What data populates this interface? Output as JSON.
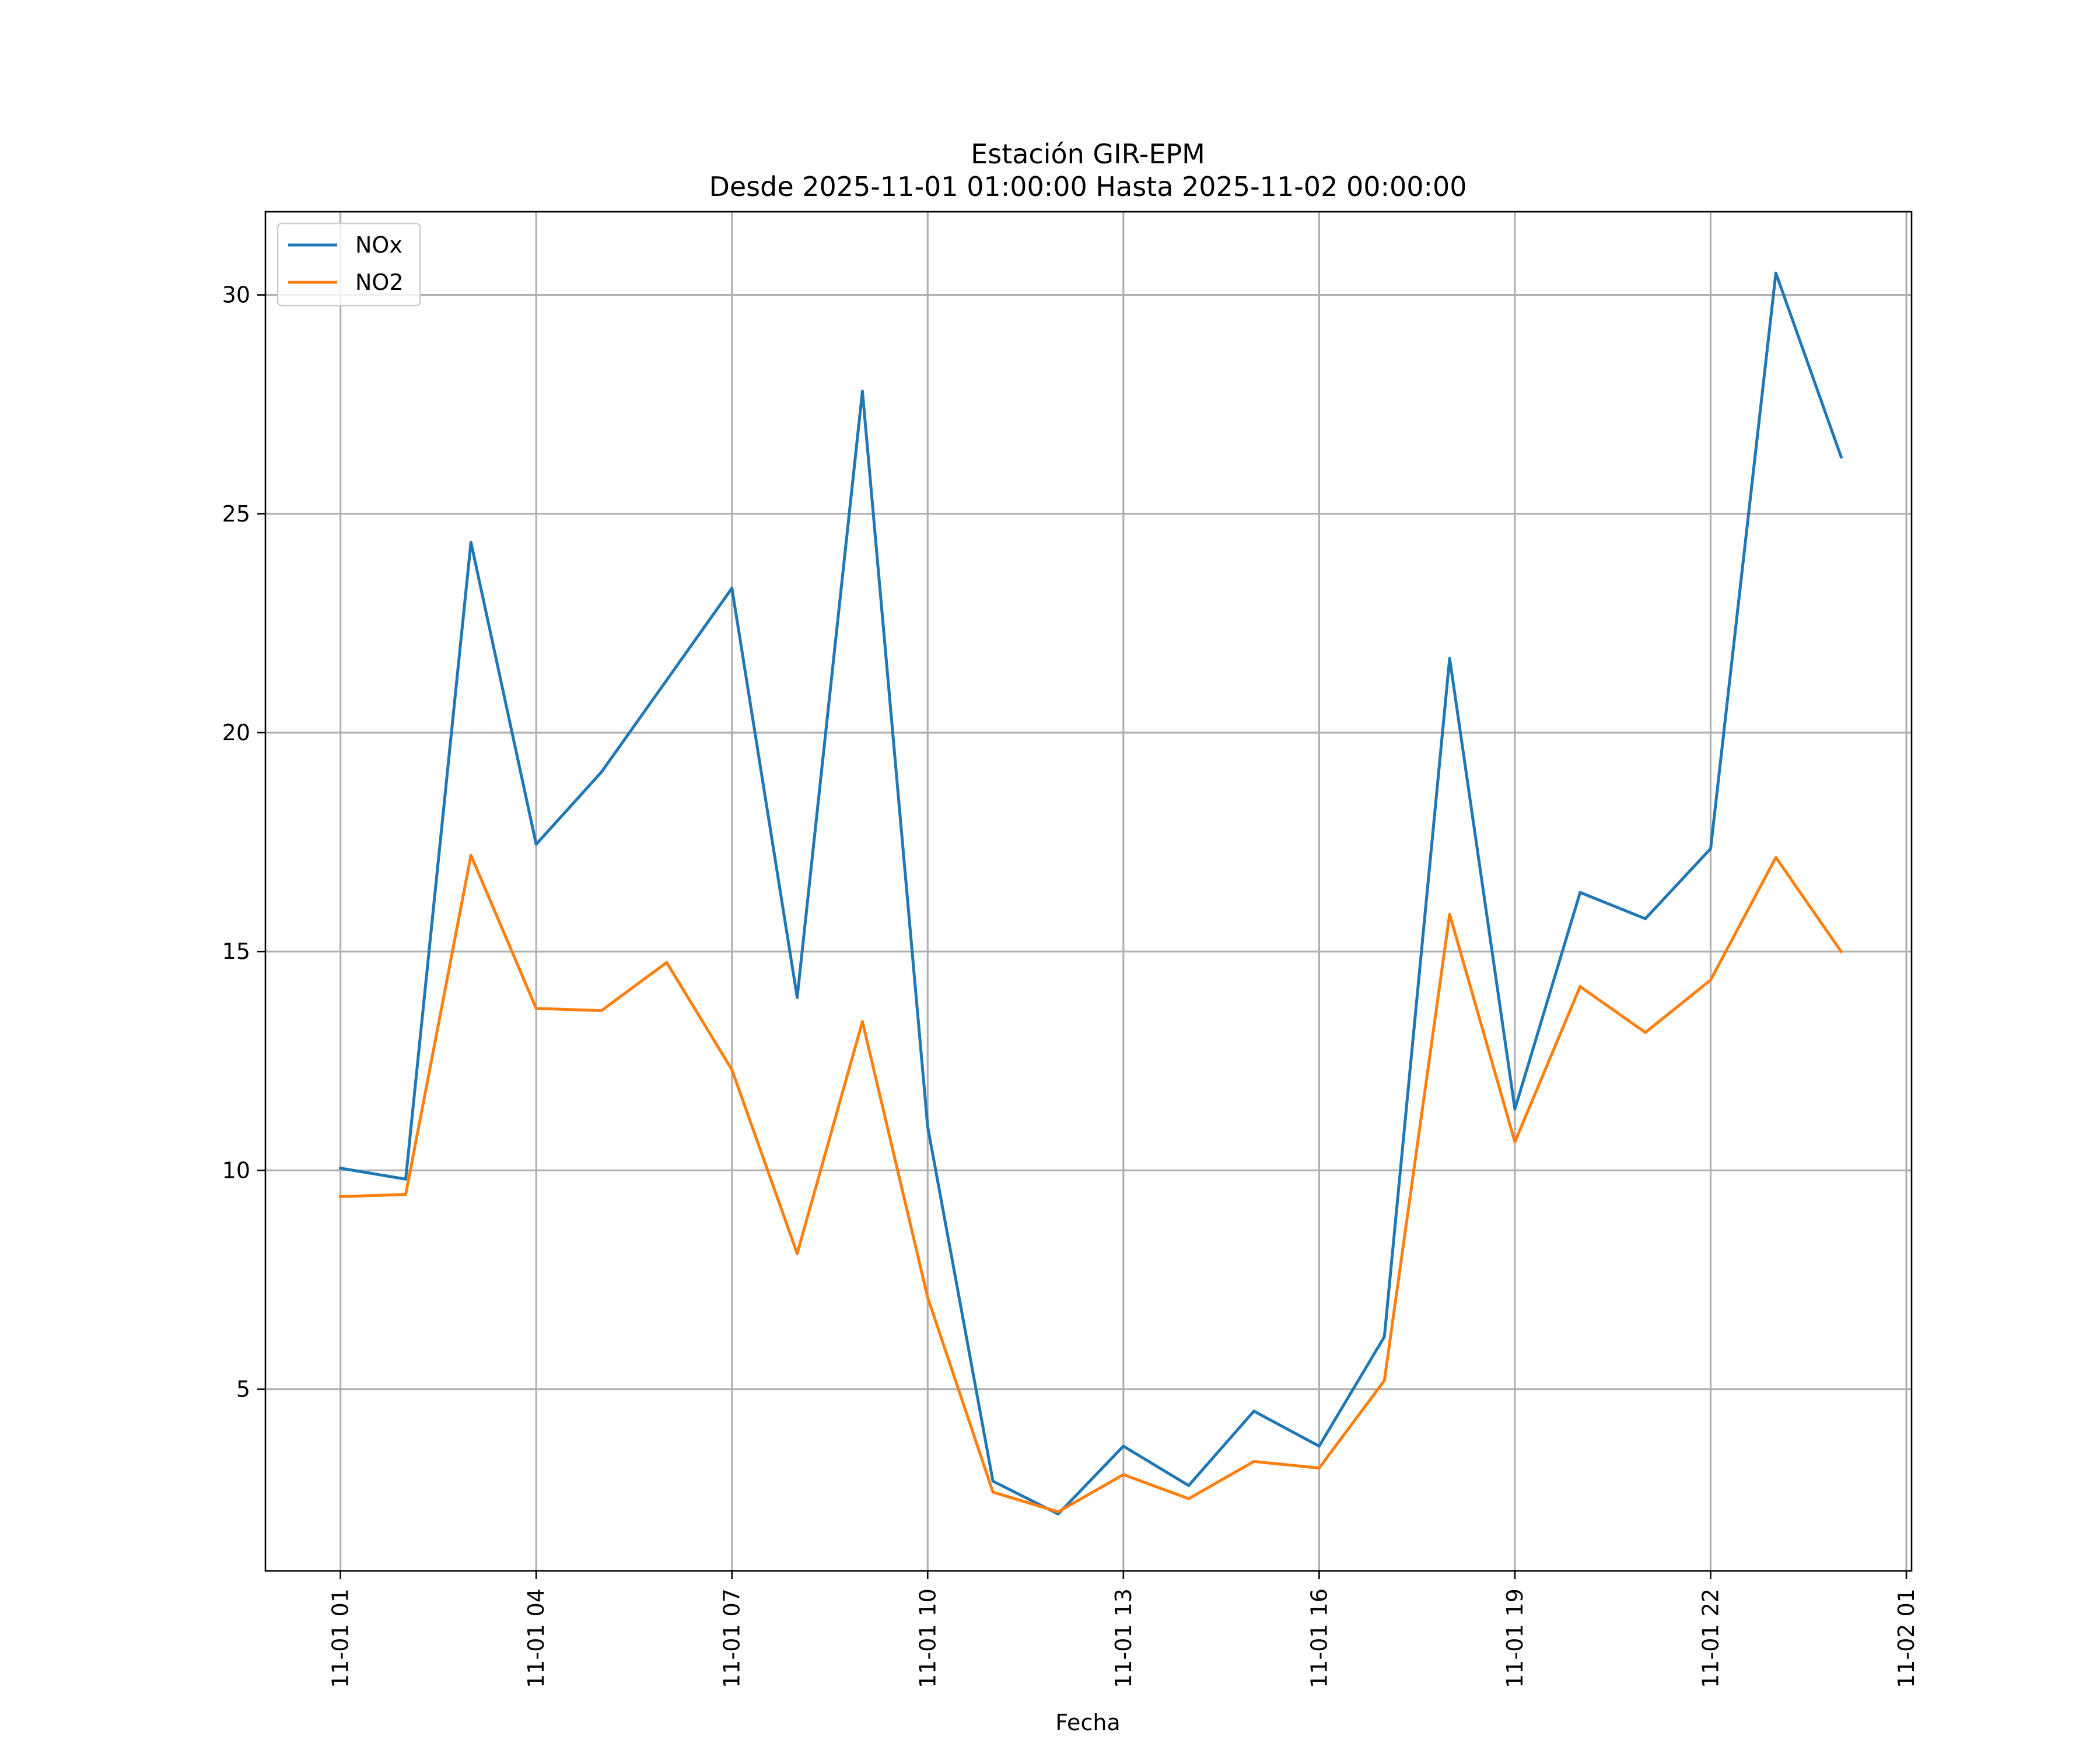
{
  "chart_data": {
    "type": "line",
    "title": [
      "Estación GIR-EPM",
      "Desde 2025-11-01 01:00:00 Hasta 2025-11-02 00:00:00"
    ],
    "xlabel": "Fecha",
    "ylabel": "",
    "x": [
      1,
      2,
      3,
      4,
      5,
      6,
      7,
      8,
      9,
      10,
      11,
      12,
      13,
      14,
      15,
      16,
      17,
      18,
      19,
      20,
      21,
      22,
      23,
      24
    ],
    "xlim": [
      -0.15,
      25.08
    ],
    "ylim": [
      0.85,
      31.9
    ],
    "x_ticks": [
      {
        "value": 1,
        "label": "11-01 01"
      },
      {
        "value": 4,
        "label": "11-01 04"
      },
      {
        "value": 7,
        "label": "11-01 07"
      },
      {
        "value": 10,
        "label": "11-01 10"
      },
      {
        "value": 13,
        "label": "11-01 13"
      },
      {
        "value": 16,
        "label": "11-01 16"
      },
      {
        "value": 19,
        "label": "11-01 19"
      },
      {
        "value": 22,
        "label": "11-01 22"
      },
      {
        "value": 25,
        "label": "11-02 01"
      }
    ],
    "y_ticks": [
      {
        "value": 5,
        "label": "5"
      },
      {
        "value": 10,
        "label": "10"
      },
      {
        "value": 15,
        "label": "15"
      },
      {
        "value": 20,
        "label": "20"
      },
      {
        "value": 25,
        "label": "25"
      },
      {
        "value": 30,
        "label": "30"
      }
    ],
    "grid": true,
    "legend_position": "top-left",
    "series": [
      {
        "name": "NOx",
        "color": "#1f77b4",
        "values": [
          10.05,
          9.8,
          24.35,
          17.45,
          19.1,
          21.2,
          23.3,
          13.95,
          27.8,
          11.0,
          2.9,
          2.15,
          3.7,
          2.8,
          4.5,
          3.7,
          6.2,
          21.7,
          11.4,
          16.35,
          15.75,
          17.35,
          30.5,
          26.3
        ]
      },
      {
        "name": "NO2",
        "color": "#ff7f0e",
        "values": [
          9.4,
          9.45,
          17.2,
          13.7,
          13.65,
          14.75,
          12.3,
          8.1,
          13.4,
          7.1,
          2.65,
          2.2,
          3.05,
          2.5,
          3.35,
          3.2,
          5.2,
          15.85,
          10.65,
          14.2,
          13.15,
          14.35,
          17.15,
          15.0
        ]
      }
    ]
  }
}
